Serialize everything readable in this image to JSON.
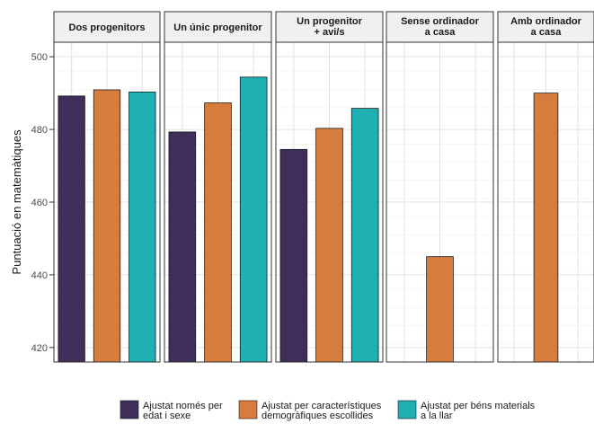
{
  "chart_data": {
    "type": "bar",
    "ylabel": "Puntuació en matemàtiques",
    "ylim": [
      416,
      504
    ],
    "yticks": [
      420,
      440,
      460,
      480,
      500
    ],
    "grid": true,
    "legend_position": "bottom",
    "colors": [
      "#3f2d5a",
      "#d67d3e",
      "#1fb0b4"
    ],
    "legend": [
      {
        "lines": [
          "Ajustat només per",
          "edat i sexe"
        ]
      },
      {
        "lines": [
          "Ajustat per característiques",
          "demogràfiques escollides"
        ]
      },
      {
        "lines": [
          "Ajustat per béns materials",
          "a la llar"
        ]
      }
    ],
    "series": [
      {
        "name": "Ajustat només per edat i sexe",
        "values": [
          489.2,
          479.3,
          474.5,
          null,
          null
        ]
      },
      {
        "name": "Ajustat per característiques demogràfiques escollides",
        "values": [
          490.9,
          487.3,
          480.3,
          445.0,
          490.0
        ]
      },
      {
        "name": "Ajustat per béns materials a la llar",
        "values": [
          490.3,
          494.4,
          485.8,
          null,
          null
        ]
      }
    ],
    "panels": [
      {
        "title_lines": [
          "Dos progenitors"
        ]
      },
      {
        "title_lines": [
          "Un únic progenitor"
        ]
      },
      {
        "title_lines": [
          "Un progenitor",
          "+ avi/s"
        ]
      },
      {
        "title_lines": [
          "Sense ordinador",
          "a casa"
        ]
      },
      {
        "title_lines": [
          "Amb ordinador",
          "a casa"
        ]
      }
    ]
  }
}
